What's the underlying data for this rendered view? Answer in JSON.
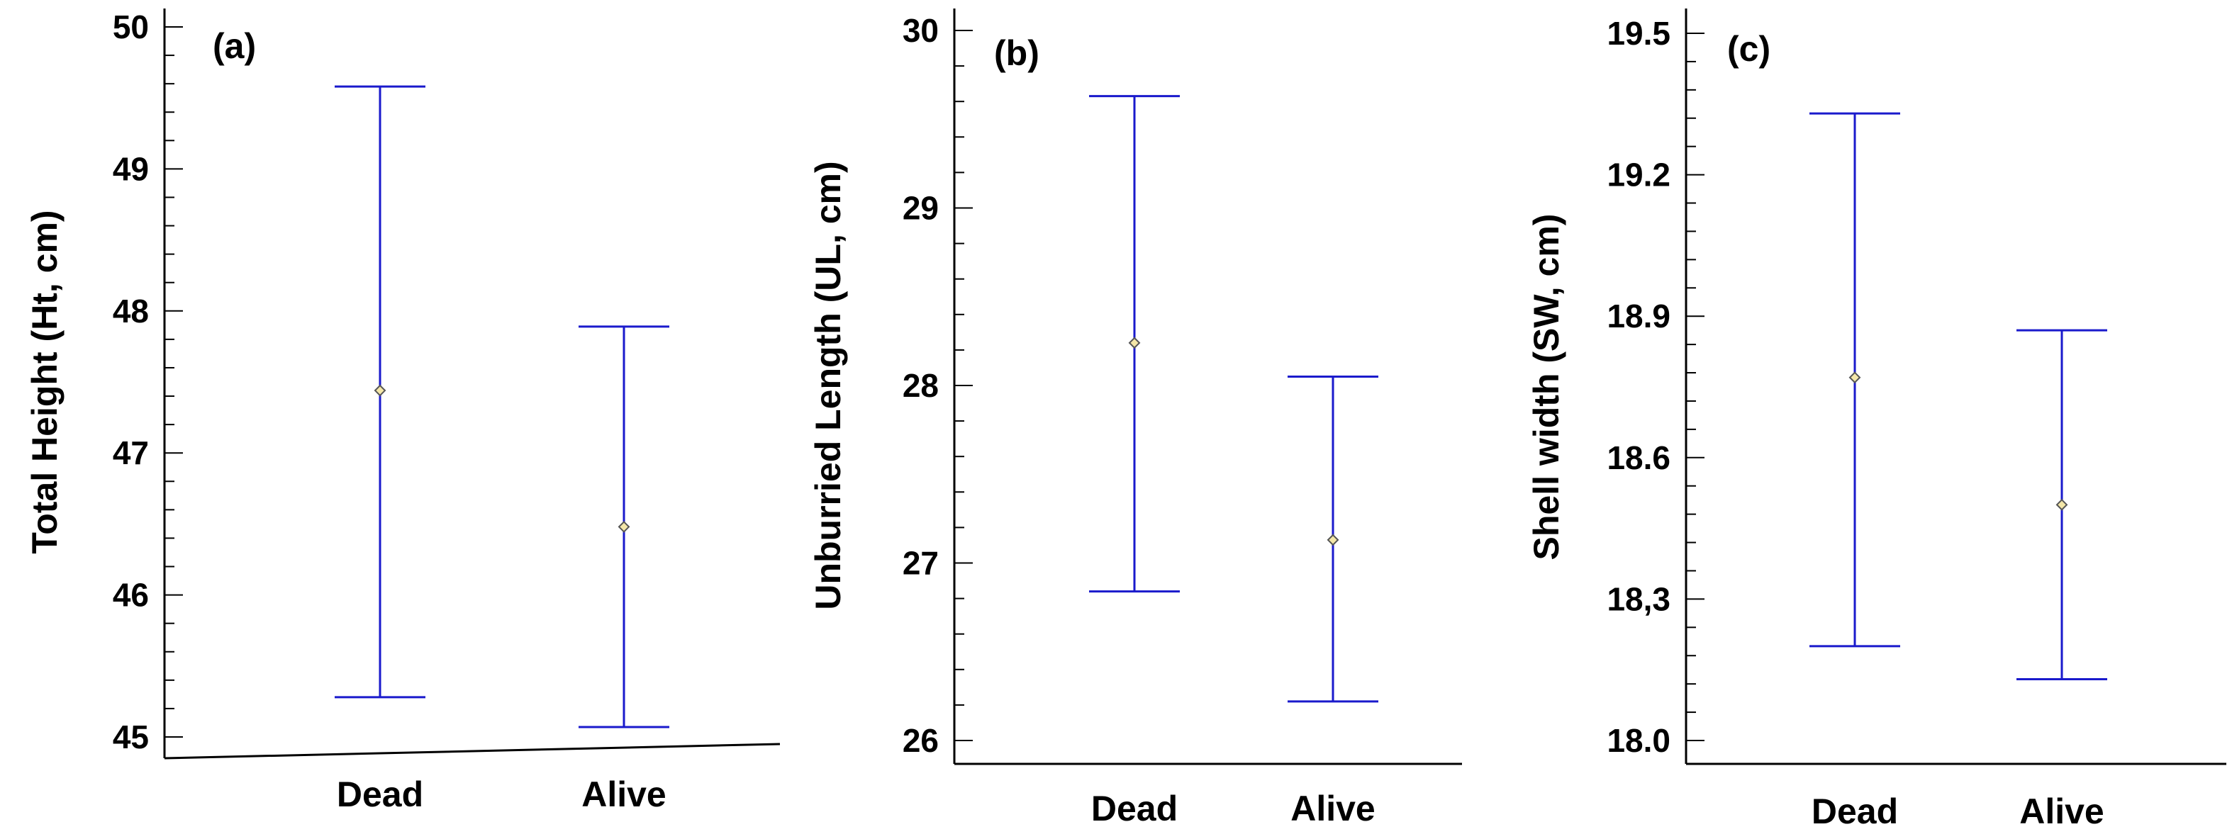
{
  "chart_data": [
    {
      "type": "scatter",
      "panel_label": "(a)",
      "ylabel": "Total Height (Ht, cm)",
      "xlabel": "",
      "categories": [
        "Dead",
        "Alive"
      ],
      "ylim": [
        44.85,
        50.15
      ],
      "yticks": [
        "45",
        "46",
        "47",
        "48",
        "49",
        "50"
      ],
      "ytick_values": [
        45,
        46,
        47,
        48,
        49,
        50
      ],
      "points": [
        {
          "category": "Dead",
          "mean": 47.44,
          "lower": 45.28,
          "upper": 49.58
        },
        {
          "category": "Alive",
          "mean": 46.48,
          "lower": 45.07,
          "upper": 47.89
        }
      ],
      "grid": false,
      "legend": "none"
    },
    {
      "type": "scatter",
      "panel_label": "(b)",
      "ylabel": "Unburried Length (UL, cm)",
      "xlabel": "",
      "categories": [
        "Dead",
        "Alive"
      ],
      "ylim": [
        25.88,
        30.1
      ],
      "yticks": [
        "26",
        "27",
        "28",
        "29",
        "30"
      ],
      "ytick_values": [
        26,
        27,
        28,
        29,
        30
      ],
      "points": [
        {
          "category": "Dead",
          "mean": 28.24,
          "lower": 26.84,
          "upper": 29.63
        },
        {
          "category": "Alive",
          "mean": 27.13,
          "lower": 26.22,
          "upper": 28.05
        }
      ],
      "grid": false,
      "legend": "none"
    },
    {
      "type": "scatter",
      "panel_label": "(c)",
      "ylabel": "Shell width (SW, cm)",
      "xlabel": "",
      "categories": [
        "Dead",
        "Alive"
      ],
      "ylim": [
        17.95,
        19.55
      ],
      "yticks": [
        "18.0",
        "18,3",
        "18.6",
        "18.9",
        "19.2",
        "19.5"
      ],
      "ytick_values": [
        18.0,
        18.3,
        18.6,
        18.9,
        19.2,
        19.5
      ],
      "points": [
        {
          "category": "Dead",
          "mean": 18.77,
          "lower": 18.2,
          "upper": 19.33
        },
        {
          "category": "Alive",
          "mean": 18.5,
          "lower": 18.13,
          "upper": 18.87
        }
      ],
      "grid": false,
      "legend": "none"
    }
  ]
}
